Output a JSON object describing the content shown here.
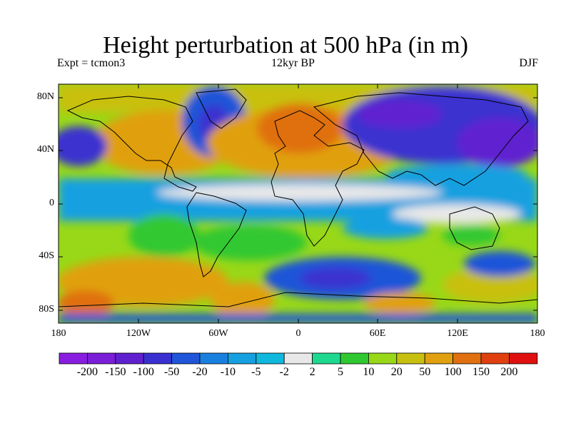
{
  "title": "Height perturbation at 500 hPa (in m)",
  "subtitle_left": "Expt = tcmon3",
  "subtitle_center": "12kyr BP",
  "subtitle_right": "DJF",
  "lat_ticks": [
    "80N",
    "40N",
    "0",
    "40S",
    "80S"
  ],
  "lon_ticks": [
    "180",
    "120W",
    "60W",
    "0",
    "60E",
    "120E",
    "180"
  ],
  "colorbar": {
    "labels": [
      "-200",
      "-150",
      "-100",
      "-50",
      "-20",
      "-10",
      "-5",
      "-2",
      "2",
      "5",
      "10",
      "20",
      "50",
      "100",
      "150",
      "200"
    ],
    "colors": [
      "#8a1ee0",
      "#7a1ed8",
      "#6020d0",
      "#3a30d0",
      "#1f55d8",
      "#1a80e0",
      "#16a0e0",
      "#0fb8dc",
      "#e8e8e8",
      "#1ed890",
      "#30c830",
      "#98d818",
      "#c8c010",
      "#e0a010",
      "#e07010",
      "#e04010",
      "#e01010"
    ]
  }
}
